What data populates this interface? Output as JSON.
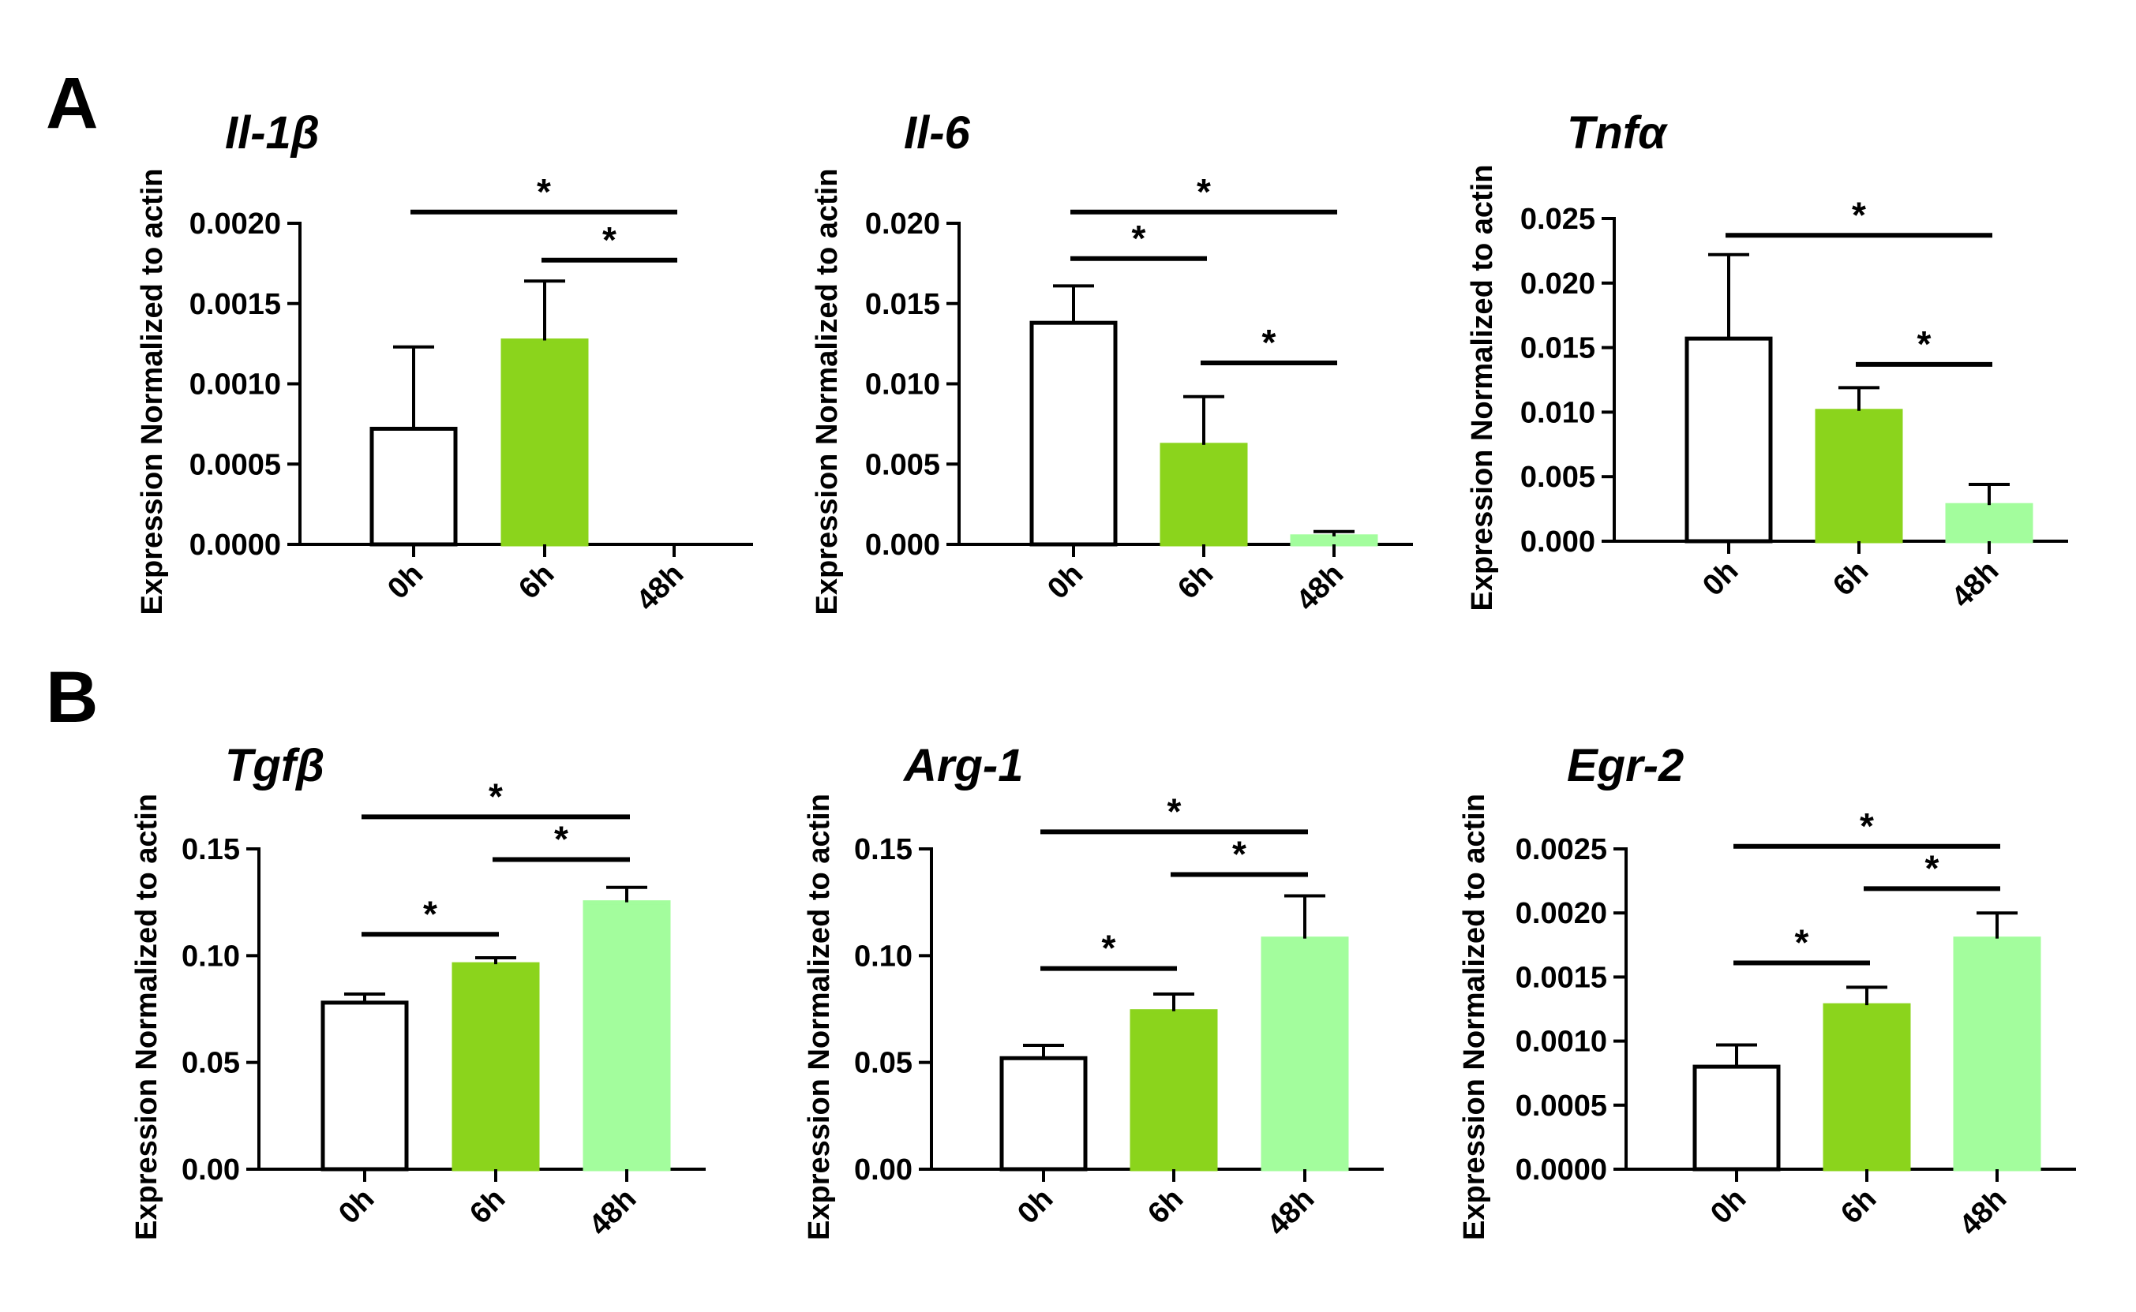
{
  "panels": [
    {
      "label": "A"
    },
    {
      "label": "B"
    }
  ],
  "chart_data": [
    {
      "type": "bar",
      "panel": "A",
      "title": "Il-1β",
      "ylabel": "Expression Normalized to actin",
      "xlabel": "",
      "categories": [
        "0h",
        "6h",
        "48h"
      ],
      "values": [
        0.00072,
        0.00127,
        0.0
      ],
      "errors": [
        0.00051,
        0.00037,
        0.0
      ],
      "colors": [
        "#ffffff",
        "#8bd41c",
        "#a3fd9d"
      ],
      "ylim": [
        0,
        0.002
      ],
      "yticks": [
        "0.0000",
        "0.0005",
        "0.0010",
        "0.0015",
        "0.0020"
      ],
      "significance": [
        {
          "from": 0,
          "to": 2,
          "label": "*",
          "y": 0.00207
        },
        {
          "from": 1,
          "to": 2,
          "label": "*",
          "y": 0.00177
        }
      ]
    },
    {
      "type": "bar",
      "panel": "A",
      "title": "Il-6",
      "ylabel": "Expression Normalized to actin",
      "xlabel": "",
      "categories": [
        "0h",
        "6h",
        "48h"
      ],
      "values": [
        0.0138,
        0.0062,
        0.0005
      ],
      "errors": [
        0.0023,
        0.003,
        0.0003
      ],
      "colors": [
        "#ffffff",
        "#8bd41c",
        "#a3fd9d"
      ],
      "ylim": [
        0,
        0.02
      ],
      "yticks": [
        "0.000",
        "0.005",
        "0.010",
        "0.015",
        "0.020"
      ],
      "significance": [
        {
          "from": 0,
          "to": 2,
          "label": "*",
          "y": 0.0207
        },
        {
          "from": 0,
          "to": 1,
          "label": "*",
          "y": 0.0178
        },
        {
          "from": 1,
          "to": 2,
          "label": "*",
          "y": 0.0113
        }
      ]
    },
    {
      "type": "bar",
      "panel": "A",
      "title": "Tnfα",
      "ylabel": "Expression Normalized to actin",
      "xlabel": "",
      "categories": [
        "0h",
        "6h",
        "48h"
      ],
      "values": [
        0.0157,
        0.0101,
        0.0028
      ],
      "errors": [
        0.0065,
        0.0018,
        0.0016
      ],
      "colors": [
        "#ffffff",
        "#8bd41c",
        "#a3fd9d"
      ],
      "ylim": [
        0,
        0.025
      ],
      "yticks": [
        "0.000",
        "0.005",
        "0.010",
        "0.015",
        "0.020",
        "0.025"
      ],
      "significance": [
        {
          "from": 0,
          "to": 2,
          "label": "*",
          "y": 0.0237
        },
        {
          "from": 1,
          "to": 2,
          "label": "*",
          "y": 0.0137
        }
      ]
    },
    {
      "type": "bar",
      "panel": "B",
      "title": "Tgfβ",
      "ylabel": "Expression Normalized to actin",
      "xlabel": "",
      "categories": [
        "0h",
        "6h",
        "48h"
      ],
      "values": [
        0.078,
        0.096,
        0.125
      ],
      "errors": [
        0.004,
        0.003,
        0.007
      ],
      "colors": [
        "#ffffff",
        "#8bd41c",
        "#a3fd9d"
      ],
      "ylim": [
        0,
        0.15
      ],
      "yticks": [
        "0.00",
        "0.05",
        "0.10",
        "0.15"
      ],
      "significance": [
        {
          "from": 0,
          "to": 2,
          "label": "*",
          "y": 0.165
        },
        {
          "from": 1,
          "to": 2,
          "label": "*",
          "y": 0.145
        },
        {
          "from": 0,
          "to": 1,
          "label": "*",
          "y": 0.11
        }
      ]
    },
    {
      "type": "bar",
      "panel": "B",
      "title": "Arg-1",
      "ylabel": "Expression Normalized to actin",
      "xlabel": "",
      "categories": [
        "0h",
        "6h",
        "48h"
      ],
      "values": [
        0.052,
        0.074,
        0.108
      ],
      "errors": [
        0.006,
        0.008,
        0.02
      ],
      "colors": [
        "#ffffff",
        "#8bd41c",
        "#a3fd9d"
      ],
      "ylim": [
        0,
        0.15
      ],
      "yticks": [
        "0.00",
        "0.05",
        "0.10",
        "0.15"
      ],
      "significance": [
        {
          "from": 0,
          "to": 2,
          "label": "*",
          "y": 0.158
        },
        {
          "from": 1,
          "to": 2,
          "label": "*",
          "y": 0.138
        },
        {
          "from": 0,
          "to": 1,
          "label": "*",
          "y": 0.094
        }
      ]
    },
    {
      "type": "bar",
      "panel": "B",
      "title": "Egr-2",
      "ylabel": "Expression Normalized to actin",
      "xlabel": "",
      "categories": [
        "0h",
        "6h",
        "48h"
      ],
      "values": [
        0.0008,
        0.00128,
        0.0018
      ],
      "errors": [
        0.00017,
        0.00014,
        0.0002
      ],
      "colors": [
        "#ffffff",
        "#8bd41c",
        "#a3fd9d"
      ],
      "ylim": [
        0,
        0.0025
      ],
      "yticks": [
        "0.0000",
        "0.0005",
        "0.0010",
        "0.0015",
        "0.0020",
        "0.0025"
      ],
      "significance": [
        {
          "from": 0,
          "to": 2,
          "label": "*",
          "y": 0.00252
        },
        {
          "from": 1,
          "to": 2,
          "label": "*",
          "y": 0.00219
        },
        {
          "from": 0,
          "to": 1,
          "label": "*",
          "y": 0.00161
        }
      ]
    }
  ]
}
